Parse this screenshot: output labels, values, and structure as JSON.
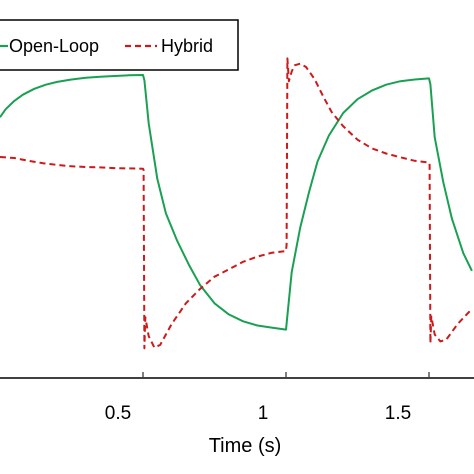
{
  "chart_data": {
    "type": "line",
    "title": "",
    "xlabel": "Time (s)",
    "ylabel": "",
    "xlim": [
      0.0,
      1.65
    ],
    "ylim": [
      0.0,
      1.0
    ],
    "x_ticks": [
      {
        "value": 0.5,
        "label": "0.5"
      },
      {
        "value": 1.0,
        "label": "1"
      },
      {
        "value": 1.5,
        "label": "1.5"
      }
    ],
    "grid": false,
    "legend": {
      "placement": "top-left"
    },
    "series": [
      {
        "name": "Open-Loop",
        "color": "#1aa052",
        "dash": "solid",
        "points": [
          [
            0.0,
            0.748
          ],
          [
            0.02,
            0.771
          ],
          [
            0.05,
            0.795
          ],
          [
            0.08,
            0.813
          ],
          [
            0.12,
            0.83
          ],
          [
            0.16,
            0.842
          ],
          [
            0.2,
            0.85
          ],
          [
            0.25,
            0.857
          ],
          [
            0.3,
            0.862
          ],
          [
            0.35,
            0.865
          ],
          [
            0.4,
            0.867
          ],
          [
            0.45,
            0.869
          ],
          [
            0.5,
            0.87
          ],
          [
            0.505,
            0.855
          ],
          [
            0.52,
            0.73
          ],
          [
            0.55,
            0.57
          ],
          [
            0.58,
            0.47
          ],
          [
            0.62,
            0.39
          ],
          [
            0.66,
            0.322
          ],
          [
            0.7,
            0.262
          ],
          [
            0.75,
            0.21
          ],
          [
            0.8,
            0.178
          ],
          [
            0.85,
            0.158
          ],
          [
            0.9,
            0.146
          ],
          [
            0.95,
            0.14
          ],
          [
            1.0,
            0.134
          ],
          [
            1.003,
            0.16
          ],
          [
            1.02,
            0.3
          ],
          [
            1.05,
            0.43
          ],
          [
            1.08,
            0.53
          ],
          [
            1.11,
            0.62
          ],
          [
            1.15,
            0.695
          ],
          [
            1.2,
            0.76
          ],
          [
            1.25,
            0.8
          ],
          [
            1.3,
            0.825
          ],
          [
            1.35,
            0.842
          ],
          [
            1.4,
            0.852
          ],
          [
            1.45,
            0.857
          ],
          [
            1.5,
            0.86
          ],
          [
            1.505,
            0.843
          ],
          [
            1.52,
            0.69
          ],
          [
            1.55,
            0.56
          ],
          [
            1.58,
            0.455
          ],
          [
            1.62,
            0.355
          ],
          [
            1.65,
            0.304
          ]
        ]
      },
      {
        "name": "Hybrid",
        "color": "#cc1a1a",
        "dash": "dashed",
        "points": [
          [
            0.0,
            0.633
          ],
          [
            0.05,
            0.63
          ],
          [
            0.1,
            0.622
          ],
          [
            0.15,
            0.615
          ],
          [
            0.2,
            0.61
          ],
          [
            0.25,
            0.606
          ],
          [
            0.3,
            0.604
          ],
          [
            0.35,
            0.603
          ],
          [
            0.4,
            0.601
          ],
          [
            0.45,
            0.6
          ],
          [
            0.5,
            0.599
          ],
          [
            0.502,
            0.595
          ],
          [
            0.505,
            0.08
          ],
          [
            0.508,
            0.17
          ],
          [
            0.52,
            0.115
          ],
          [
            0.54,
            0.082
          ],
          [
            0.56,
            0.09
          ],
          [
            0.6,
            0.15
          ],
          [
            0.65,
            0.21
          ],
          [
            0.7,
            0.252
          ],
          [
            0.75,
            0.287
          ],
          [
            0.8,
            0.308
          ],
          [
            0.85,
            0.33
          ],
          [
            0.9,
            0.345
          ],
          [
            0.95,
            0.356
          ],
          [
            1.0,
            0.361
          ],
          [
            1.002,
            0.38
          ],
          [
            1.005,
            0.918
          ],
          [
            1.01,
            0.852
          ],
          [
            1.02,
            0.88
          ],
          [
            1.03,
            0.898
          ],
          [
            1.05,
            0.903
          ],
          [
            1.07,
            0.893
          ],
          [
            1.1,
            0.858
          ],
          [
            1.13,
            0.808
          ],
          [
            1.16,
            0.762
          ],
          [
            1.2,
            0.722
          ],
          [
            1.25,
            0.683
          ],
          [
            1.3,
            0.658
          ],
          [
            1.35,
            0.643
          ],
          [
            1.4,
            0.632
          ],
          [
            1.45,
            0.622
          ],
          [
            1.5,
            0.617
          ],
          [
            1.502,
            0.61
          ],
          [
            1.505,
            0.095
          ],
          [
            1.508,
            0.172
          ],
          [
            1.52,
            0.12
          ],
          [
            1.54,
            0.1
          ],
          [
            1.56,
            0.105
          ],
          [
            1.6,
            0.15
          ],
          [
            1.65,
            0.194
          ]
        ]
      }
    ]
  }
}
